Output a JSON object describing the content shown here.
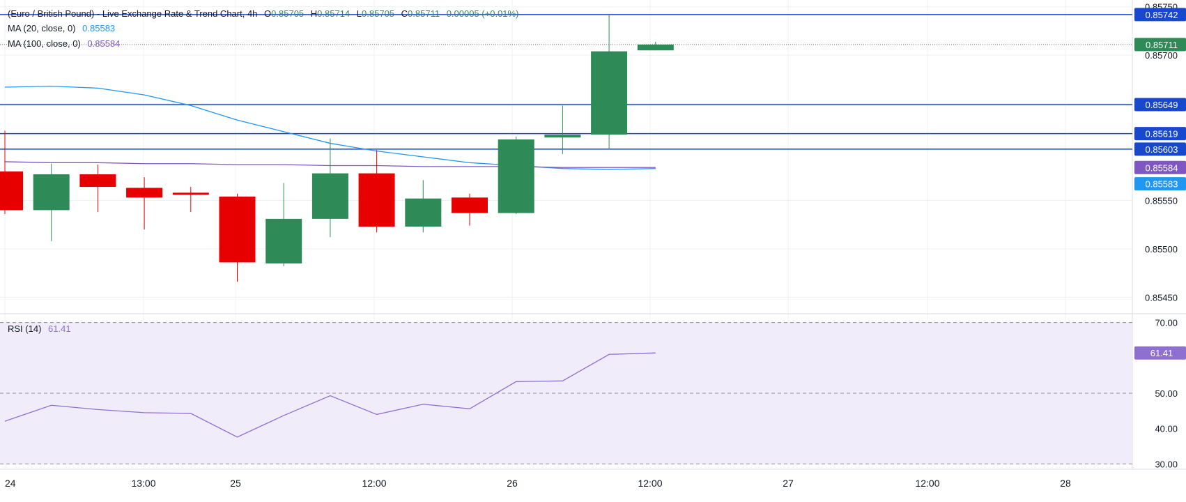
{
  "header": {
    "title": "(Euro / British Pound) - Live Exchange Rate & Trend Chart, 4h",
    "o_label": "O",
    "o": "0.85705",
    "h_label": "H",
    "h": "0.85714",
    "l_label": "L",
    "l": "0.85705",
    "c_label": "C",
    "c": "0.85711",
    "change": "0.00005 (+0.01%)"
  },
  "legend": {
    "ma20_label": "MA (20, close, 0)",
    "ma20_value": "0.85583",
    "ma100_label": "MA (100, close, 0)",
    "ma100_value": "0.85584",
    "rsi_label": "RSI (14)",
    "rsi_value": "61.41"
  },
  "colors": {
    "up": "#2e8b57",
    "down": "#e60000",
    "ma20": "#2196f3",
    "ma100": "#7e57c2",
    "level_line": "#1848cc",
    "level_tag": "#1848cc",
    "last_price_tag": "#2e8b57",
    "rsi_line": "#8f6fd0",
    "rsi_band": "#f0ecf9",
    "grid": "#eef0f3",
    "text": "#131722"
  },
  "chart_data": [
    {
      "type": "candlestick",
      "title": "",
      "timeframe": "4h",
      "x_tick_labels": [
        "24",
        "13:00",
        "25",
        "12:00",
        "26",
        "12:00",
        "27",
        "12:00",
        "28"
      ],
      "y_tick_labels": [
        "0.85750",
        "0.85700",
        "0.85650",
        "0.85550",
        "0.85500",
        "0.85450"
      ],
      "ylim": [
        0.85433,
        0.85757
      ],
      "grid": true,
      "candles": [
        {
          "open": 0.8558,
          "high": 0.85622,
          "low": 0.85536,
          "close": 0.8554
        },
        {
          "open": 0.8554,
          "high": 0.85588,
          "low": 0.85508,
          "close": 0.85577
        },
        {
          "open": 0.85577,
          "high": 0.85587,
          "low": 0.85538,
          "close": 0.85564
        },
        {
          "open": 0.85563,
          "high": 0.85574,
          "low": 0.8552,
          "close": 0.85553
        },
        {
          "open": 0.85558,
          "high": 0.85564,
          "low": 0.85538,
          "close": 0.85556
        },
        {
          "open": 0.85554,
          "high": 0.85557,
          "low": 0.85466,
          "close": 0.85486
        },
        {
          "open": 0.85485,
          "high": 0.85568,
          "low": 0.85482,
          "close": 0.85531
        },
        {
          "open": 0.85531,
          "high": 0.85614,
          "low": 0.85512,
          "close": 0.85578
        },
        {
          "open": 0.85578,
          "high": 0.85602,
          "low": 0.85517,
          "close": 0.85523
        },
        {
          "open": 0.85523,
          "high": 0.85571,
          "low": 0.85517,
          "close": 0.85552
        },
        {
          "open": 0.85553,
          "high": 0.85557,
          "low": 0.85524,
          "close": 0.85537
        },
        {
          "open": 0.85537,
          "high": 0.85616,
          "low": 0.85536,
          "close": 0.85613
        },
        {
          "open": 0.85615,
          "high": 0.85648,
          "low": 0.85598,
          "close": 0.85618
        },
        {
          "open": 0.85618,
          "high": 0.85742,
          "low": 0.85603,
          "close": 0.85704
        },
        {
          "open": 0.85705,
          "high": 0.85714,
          "low": 0.85705,
          "close": 0.85711
        }
      ],
      "series": [
        {
          "name": "MA (20, close, 0)",
          "values": [
            0.85667,
            0.85668,
            0.85666,
            0.85659,
            0.85648,
            0.85633,
            0.85621,
            0.85609,
            0.85601,
            0.85595,
            0.85589,
            0.85586,
            0.85583,
            0.85582,
            0.85583
          ]
        },
        {
          "name": "MA (100, close, 0)",
          "values": [
            0.8559,
            0.85589,
            0.85589,
            0.85588,
            0.85588,
            0.85587,
            0.85587,
            0.85586,
            0.85586,
            0.85585,
            0.85585,
            0.85585,
            0.85584,
            0.85584,
            0.85584
          ]
        }
      ],
      "horizontal_levels": [
        "0.85742",
        "0.85649",
        "0.85619",
        "0.85603"
      ],
      "price_tags": {
        "last": "0.85711",
        "ma100": "0.85584",
        "ma20": "0.85583"
      }
    },
    {
      "type": "line",
      "title": "",
      "y_tick_labels": [
        "70.00",
        "50.00",
        "40.00",
        "30.00"
      ],
      "ylim": [
        28.5,
        72.5
      ],
      "band": [
        30,
        70
      ],
      "dashed_levels": [
        70,
        50,
        30
      ],
      "series": [
        {
          "name": "RSI (14)",
          "values": [
            42.1,
            46.6,
            45.4,
            44.5,
            44.3,
            37.6,
            43.7,
            49.3,
            44.0,
            46.9,
            45.6,
            53.3,
            53.5,
            61.0,
            61.41
          ]
        }
      ],
      "value_tag": "61.41"
    }
  ]
}
